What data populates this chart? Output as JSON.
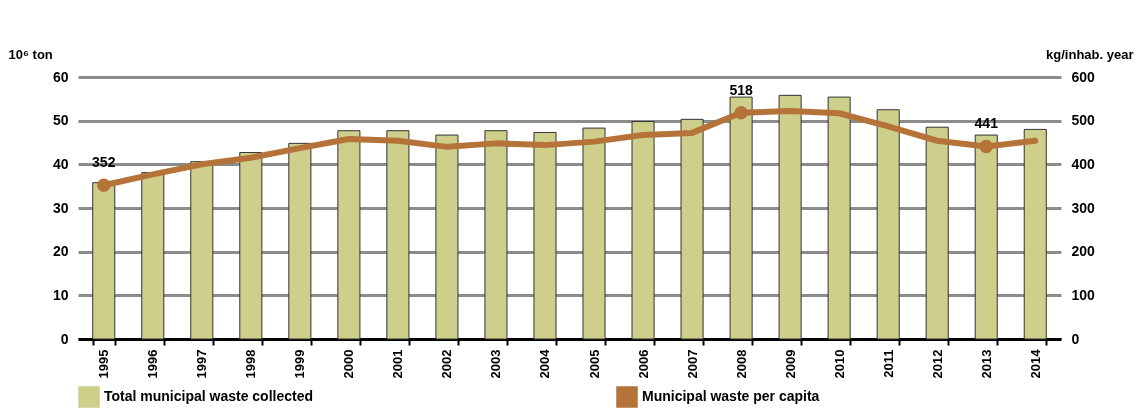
{
  "chart_data": {
    "type": "bar",
    "ylabel": "10⁶ ton",
    "y2label": "kg/inhab. year",
    "categories": [
      "1995",
      "1996",
      "1997",
      "1998",
      "1999",
      "2000",
      "2001",
      "2002",
      "2003",
      "2004",
      "2005",
      "2006",
      "2007",
      "2008",
      "2009",
      "2010",
      "2011",
      "2012",
      "2013",
      "2014"
    ],
    "series": [
      {
        "name": "Total municipal waste collected",
        "color": "#cfcf8c",
        "values": [
          35.8,
          38.1,
          40.6,
          42.7,
          44.8,
          47.7,
          47.7,
          46.7,
          47.7,
          47.3,
          48.3,
          49.8,
          50.3,
          55.4,
          55.8,
          55.4,
          52.5,
          48.5,
          46.7,
          48.0
        ]
      },
      {
        "name": "Municipal waste per capita",
        "type": "line",
        "axis": "y2",
        "color": "#b5733a",
        "values": [
          352,
          377,
          400,
          415,
          437,
          458,
          454,
          440,
          448,
          444,
          452,
          467,
          472,
          518,
          522,
          517,
          487,
          454,
          441,
          454
        ],
        "value_labels": [
          "352",
          null,
          null,
          null,
          null,
          null,
          null,
          null,
          null,
          null,
          null,
          null,
          null,
          "518",
          null,
          null,
          null,
          null,
          "441",
          null
        ]
      }
    ],
    "ylim": [
      0,
      60
    ],
    "yticks": [
      0,
      10,
      20,
      30,
      40,
      50,
      60
    ],
    "y2lim": [
      0,
      600
    ],
    "y2ticks": [
      0,
      100,
      200,
      300,
      400,
      500,
      600
    ],
    "grid": "y",
    "legend": "bottom"
  }
}
